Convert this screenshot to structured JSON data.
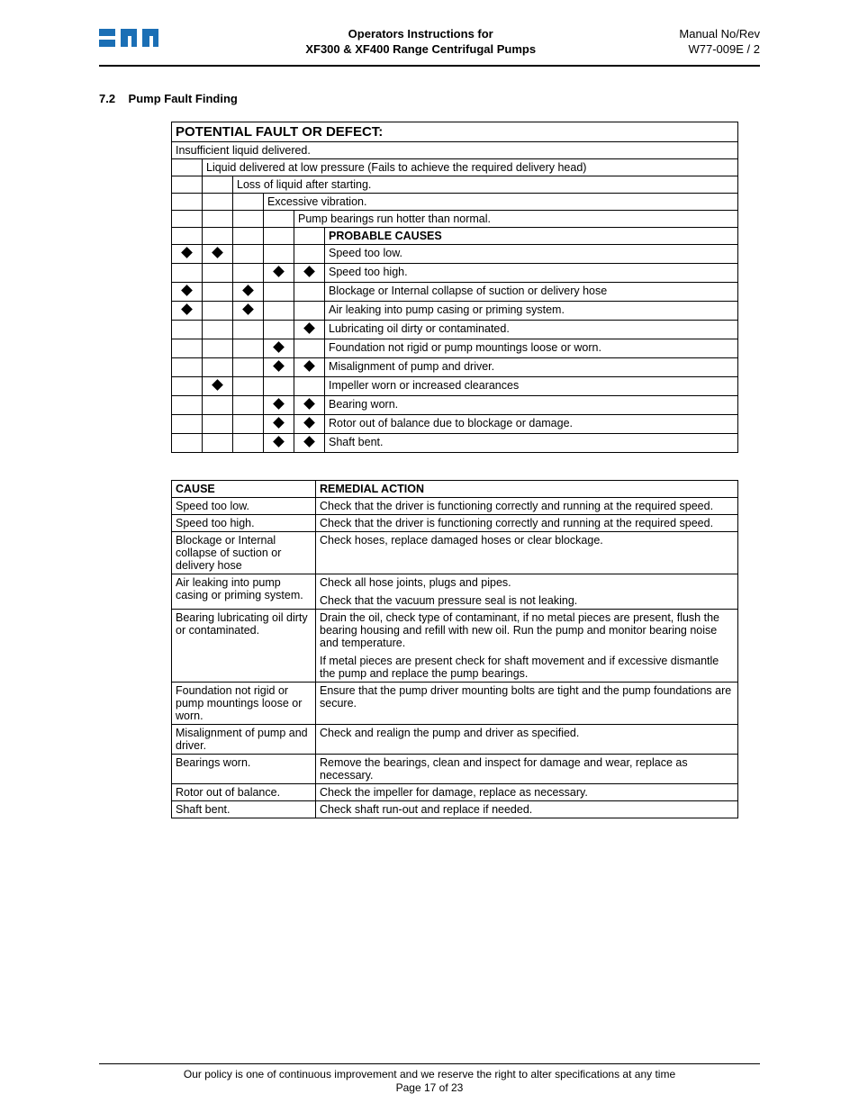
{
  "header": {
    "title_line1": "Operators Instructions for",
    "title_line2": "XF300 & XF400 Range Centrifugal Pumps",
    "right_line1": "Manual No/Rev",
    "right_line2": "W77-009E / 2"
  },
  "section": {
    "number": "7.2",
    "title": "Pump Fault Finding"
  },
  "fault_table": {
    "header": "POTENTIAL FAULT OR DEFECT:",
    "faults": [
      "Insufficient liquid delivered.",
      "Liquid delivered at low pressure (Fails to achieve the required delivery head)",
      "Loss of liquid after starting.",
      "Excessive vibration.",
      "Pump bearings run hotter than normal."
    ],
    "causes_header": "PROBABLE CAUSES",
    "rows": [
      {
        "marks": [
          true,
          true,
          false,
          false,
          false
        ],
        "cause": "Speed too low."
      },
      {
        "marks": [
          false,
          false,
          false,
          true,
          true
        ],
        "cause": "Speed too high."
      },
      {
        "marks": [
          true,
          false,
          true,
          false,
          false
        ],
        "cause": "Blockage or Internal collapse of suction or delivery hose"
      },
      {
        "marks": [
          true,
          false,
          true,
          false,
          false
        ],
        "cause": "Air leaking into pump casing or priming system."
      },
      {
        "marks": [
          false,
          false,
          false,
          false,
          true
        ],
        "cause": "Lubricating oil dirty or contaminated."
      },
      {
        "marks": [
          false,
          false,
          false,
          true,
          false
        ],
        "cause": "Foundation not rigid or pump mountings loose or worn."
      },
      {
        "marks": [
          false,
          false,
          false,
          true,
          true
        ],
        "cause": "Misalignment of pump and driver."
      },
      {
        "marks": [
          false,
          true,
          false,
          false,
          false
        ],
        "cause": "Impeller worn or increased clearances"
      },
      {
        "marks": [
          false,
          false,
          false,
          true,
          true
        ],
        "cause": "Bearing worn."
      },
      {
        "marks": [
          false,
          false,
          false,
          true,
          true
        ],
        "cause": "Rotor out of balance due to blockage or damage."
      },
      {
        "marks": [
          false,
          false,
          false,
          true,
          true
        ],
        "cause": "Shaft bent."
      }
    ]
  },
  "remedial_table": {
    "col1": "CAUSE",
    "col2": "REMEDIAL ACTION",
    "rows": [
      {
        "cause": "Speed too low.",
        "action": "Check that the driver is functioning correctly and running at the required speed."
      },
      {
        "cause": "Speed too high.",
        "action": "Check that the driver is functioning correctly and running at the required speed."
      },
      {
        "cause": "Blockage or Internal collapse of suction or delivery hose",
        "action": "Check hoses, replace damaged hoses or clear blockage."
      },
      {
        "cause": "Air leaking into pump casing or priming system.",
        "action": "Check all hose joints, plugs and pipes.\nCheck that the vacuum pressure seal is not leaking."
      },
      {
        "cause": "Bearing lubricating oil dirty or contaminated.",
        "action": "Drain the oil, check type of contaminant, if no metal pieces are present, flush the bearing housing and refill with new oil. Run the pump and monitor bearing noise and temperature.\nIf metal pieces are present check for shaft movement and if excessive dismantle the pump and replace the pump bearings."
      },
      {
        "cause": "Foundation not rigid or pump mountings loose or worn.",
        "action": "Ensure that the pump driver mounting bolts are tight and the pump foundations are secure."
      },
      {
        "cause": "Misalignment of pump and driver.",
        "action": "Check and realign the pump and driver as specified."
      },
      {
        "cause": "Bearings worn.",
        "action": "Remove the bearings, clean and inspect for damage and wear, replace as necessary."
      },
      {
        "cause": "Rotor out of balance.",
        "action": "Check the impeller for damage, replace as necessary."
      },
      {
        "cause": "Shaft bent.",
        "action": "Check shaft run-out and replace if needed."
      }
    ]
  },
  "footer": {
    "policy": "Our policy is one of continuous improvement and we reserve the right to alter specifications at any time",
    "page": "Page 17 of 23"
  },
  "logo_colors": {
    "fill": "#1b6fb5"
  }
}
